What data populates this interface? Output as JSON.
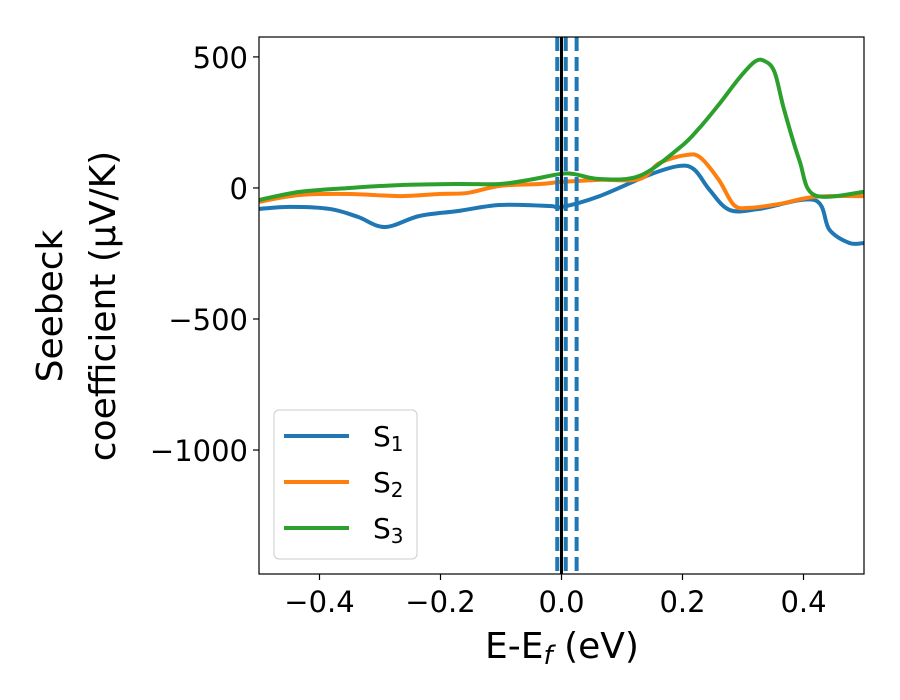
{
  "chart_data": {
    "type": "line",
    "xlabel_main": "E-E",
    "xlabel_sub": "f",
    "xlabel_tail": " (eV)",
    "ylabel_line1": "Seebeck",
    "ylabel_line2": "coefficient  (μV/K)",
    "xlim": [
      -0.5,
      0.5
    ],
    "ylim": [
      -1473,
      576
    ],
    "xticks": [
      -0.4,
      -0.2,
      0.0,
      0.2,
      0.4
    ],
    "xtick_labels": [
      "−0.4",
      "−0.2",
      "0.0",
      "0.2",
      "0.4"
    ],
    "yticks": [
      500,
      0,
      -500,
      -1000
    ],
    "ytick_labels": [
      "500",
      "0",
      "−500",
      "−1000"
    ],
    "grid": false,
    "legend_position": "lower-left",
    "vlines": [
      {
        "x": -0.007,
        "color": "#1f77b4",
        "style": "dashed"
      },
      {
        "x": 0.007,
        "color": "#1f77b4",
        "style": "dashed"
      },
      {
        "x": 0.025,
        "color": "#1f77b4",
        "style": "dashed"
      },
      {
        "x": 0.0,
        "color": "#000000",
        "style": "solid"
      }
    ],
    "series": [
      {
        "name": "S",
        "sub": "1",
        "color": "#1f77b4",
        "x": [
          -0.5,
          -0.449,
          -0.383,
          -0.337,
          -0.292,
          -0.235,
          -0.171,
          -0.102,
          -0.02,
          0.0,
          0.063,
          0.145,
          0.195,
          0.22,
          0.245,
          0.278,
          0.327,
          0.418,
          0.443,
          0.476,
          0.5
        ],
        "y": [
          -80,
          -72,
          -80,
          -110,
          -149,
          -107,
          -88,
          -65,
          -69,
          -73,
          -31,
          50,
          84,
          69,
          -8,
          -84,
          -80,
          -46,
          -160,
          -210,
          -210
        ]
      },
      {
        "name": "S",
        "sub": "2",
        "color": "#ff7f0e",
        "x": [
          -0.5,
          -0.433,
          -0.35,
          -0.267,
          -0.201,
          -0.155,
          -0.102,
          -0.036,
          0.0,
          0.063,
          0.129,
          0.162,
          0.207,
          0.23,
          0.26,
          0.285,
          0.31,
          0.36,
          0.418,
          0.5
        ],
        "y": [
          -53,
          -27,
          -23,
          -31,
          -23,
          -19,
          8,
          15,
          23,
          31,
          34,
          95,
          126,
          115,
          31,
          -65,
          -76,
          -61,
          -34,
          -31
        ]
      },
      {
        "name": "S",
        "sub": "3",
        "color": "#2ca02c",
        "x": [
          -0.5,
          -0.433,
          -0.35,
          -0.267,
          -0.171,
          -0.102,
          -0.053,
          -0.003,
          0.021,
          0.063,
          0.129,
          0.195,
          0.228,
          0.261,
          0.294,
          0.319,
          0.335,
          0.352,
          0.368,
          0.393,
          0.418,
          0.5
        ],
        "y": [
          -46,
          -15,
          0,
          11,
          15,
          15,
          31,
          53,
          53,
          34,
          46,
          153,
          229,
          321,
          420,
          481,
          485,
          443,
          298,
          107,
          -27,
          -15
        ]
      }
    ]
  }
}
